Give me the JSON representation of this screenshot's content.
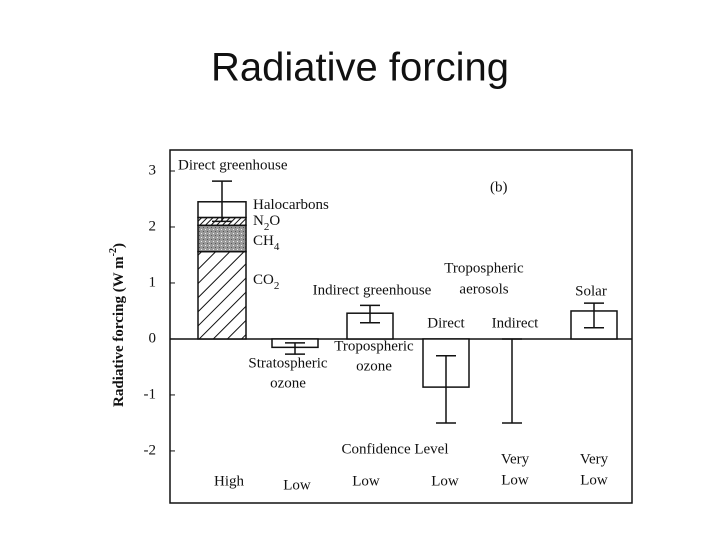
{
  "chart_data": {
    "type": "bar",
    "title": "Radiative forcing",
    "panel_label": "(b)",
    "ylabel": [
      "Radiative forcing (W m",
      "-2",
      ")"
    ],
    "ylim": [
      -2.93,
      3.375
    ],
    "yticks": [
      -2,
      -1,
      0,
      1,
      2,
      3
    ],
    "confidence_title": "Confidence Level",
    "bars": [
      {
        "label": [
          "Direct greenhouse"
        ],
        "confidence": [
          "High"
        ],
        "range": [
          2.1,
          2.82
        ],
        "segments": [
          {
            "name": [
              "CO",
              "2"
            ],
            "value": 1.56,
            "fill": "hatch"
          },
          {
            "name": [
              "CH",
              "4"
            ],
            "value": 0.47,
            "fill": "stipple"
          },
          {
            "name": [
              "N",
              "2",
              "O"
            ],
            "value": 0.14,
            "fill": "dense-hatch"
          },
          {
            "name": [
              "Halocarbons"
            ],
            "value": 0.28,
            "fill": "none"
          }
        ]
      },
      {
        "label": [
          "Stratospheric",
          "ozone"
        ],
        "confidence": [
          "Low"
        ],
        "value": -0.15,
        "range": [
          -0.27,
          -0.07
        ]
      },
      {
        "label": [
          "Tropospheric",
          "ozone"
        ],
        "group": [
          "Indirect greenhouse"
        ],
        "confidence": [
          "Low"
        ],
        "value": 0.46,
        "range": [
          0.29,
          0.6
        ]
      },
      {
        "label": [
          "Direct"
        ],
        "group": [
          "Tropospheric",
          "aerosols"
        ],
        "confidence": [
          "Low"
        ],
        "value": -0.86,
        "range": [
          -1.5,
          -0.3
        ]
      },
      {
        "label": [
          "Indirect"
        ],
        "confidence": [
          "Very",
          "Low"
        ],
        "value": null,
        "range": [
          -1.5,
          0
        ]
      },
      {
        "label": [
          "Solar"
        ],
        "confidence": [
          "Very",
          "Low"
        ],
        "value": 0.5,
        "range": [
          0.2,
          0.64
        ]
      }
    ]
  }
}
